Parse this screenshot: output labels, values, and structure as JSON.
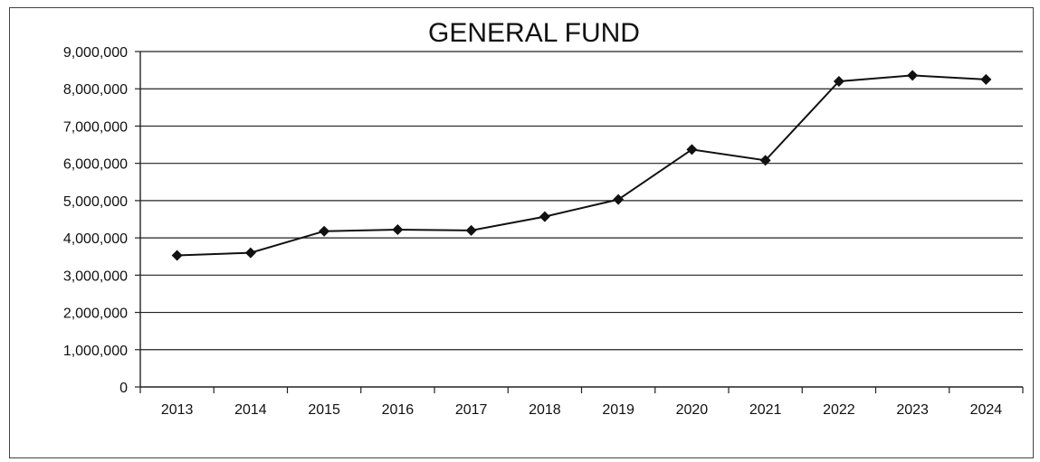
{
  "chart_data": {
    "type": "line",
    "title": "GENERAL FUND",
    "xlabel": "",
    "ylabel": "",
    "categories": [
      "2013",
      "2014",
      "2015",
      "2016",
      "2017",
      "2018",
      "2019",
      "2020",
      "2021",
      "2022",
      "2023",
      "2024"
    ],
    "series": [
      {
        "values": [
          3530000,
          3600000,
          4180000,
          4220000,
          4200000,
          4570000,
          5030000,
          6370000,
          6080000,
          8200000,
          8360000,
          8250000
        ]
      }
    ],
    "ylim": [
      0,
      9000000
    ],
    "y_ticks": [
      "0",
      "1,000,000",
      "2,000,000",
      "3,000,000",
      "4,000,000",
      "5,000,000",
      "6,000,000",
      "7,000,000",
      "8,000,000",
      "9,000,000"
    ],
    "grid": true,
    "legend": "none",
    "marker": "diamond",
    "colors": {
      "line": "#111111",
      "grid": "#222222",
      "background": "#ffffff"
    }
  }
}
